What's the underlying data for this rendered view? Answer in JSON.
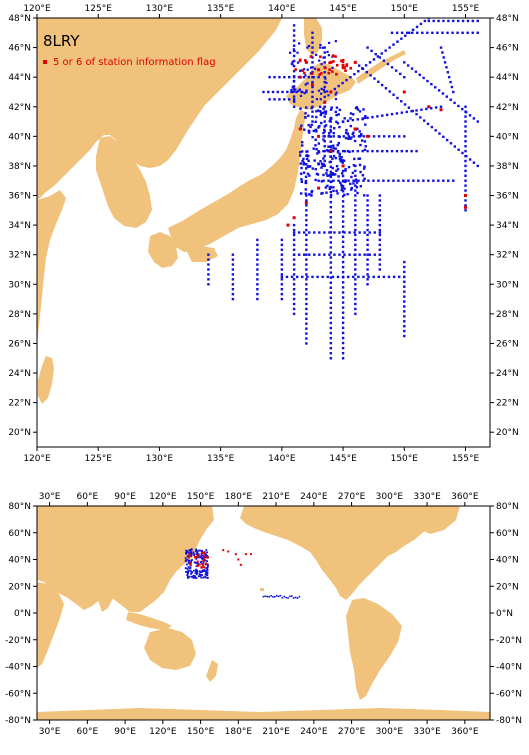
{
  "top_map": {
    "title": "8LRY",
    "legend": {
      "label": "5 or 6 of station information flag",
      "color": "#e00000"
    },
    "lon_labels": [
      "120°E",
      "125°E",
      "130°E",
      "135°E",
      "140°E",
      "145°E",
      "150°E",
      "155°E"
    ],
    "lat_labels": [
      "20°N",
      "22°N",
      "24°N",
      "26°N",
      "28°N",
      "30°N",
      "32°N",
      "34°N",
      "36°N",
      "38°N",
      "40°N",
      "42°N",
      "44°N",
      "46°N",
      "48°N"
    ],
    "lon_range": [
      120,
      157
    ],
    "lat_range": [
      19,
      48
    ]
  },
  "bottom_map": {
    "lon_labels": [
      "30°E",
      "60°E",
      "90°E",
      "120°E",
      "150°E",
      "180°E",
      "210°E",
      "240°E",
      "270°E",
      "300°E",
      "330°E",
      "360°E"
    ],
    "lat_labels": [
      "80°N",
      "60°N",
      "40°N",
      "20°N",
      "0°N",
      "-20°N",
      "-40°N",
      "-60°N",
      "-80°N"
    ],
    "lon_range": [
      20,
      380
    ],
    "lat_range": [
      -80,
      80
    ]
  },
  "colors": {
    "land": "#f0c27b",
    "station": "#1010e0",
    "flagged": "#e00000"
  }
}
